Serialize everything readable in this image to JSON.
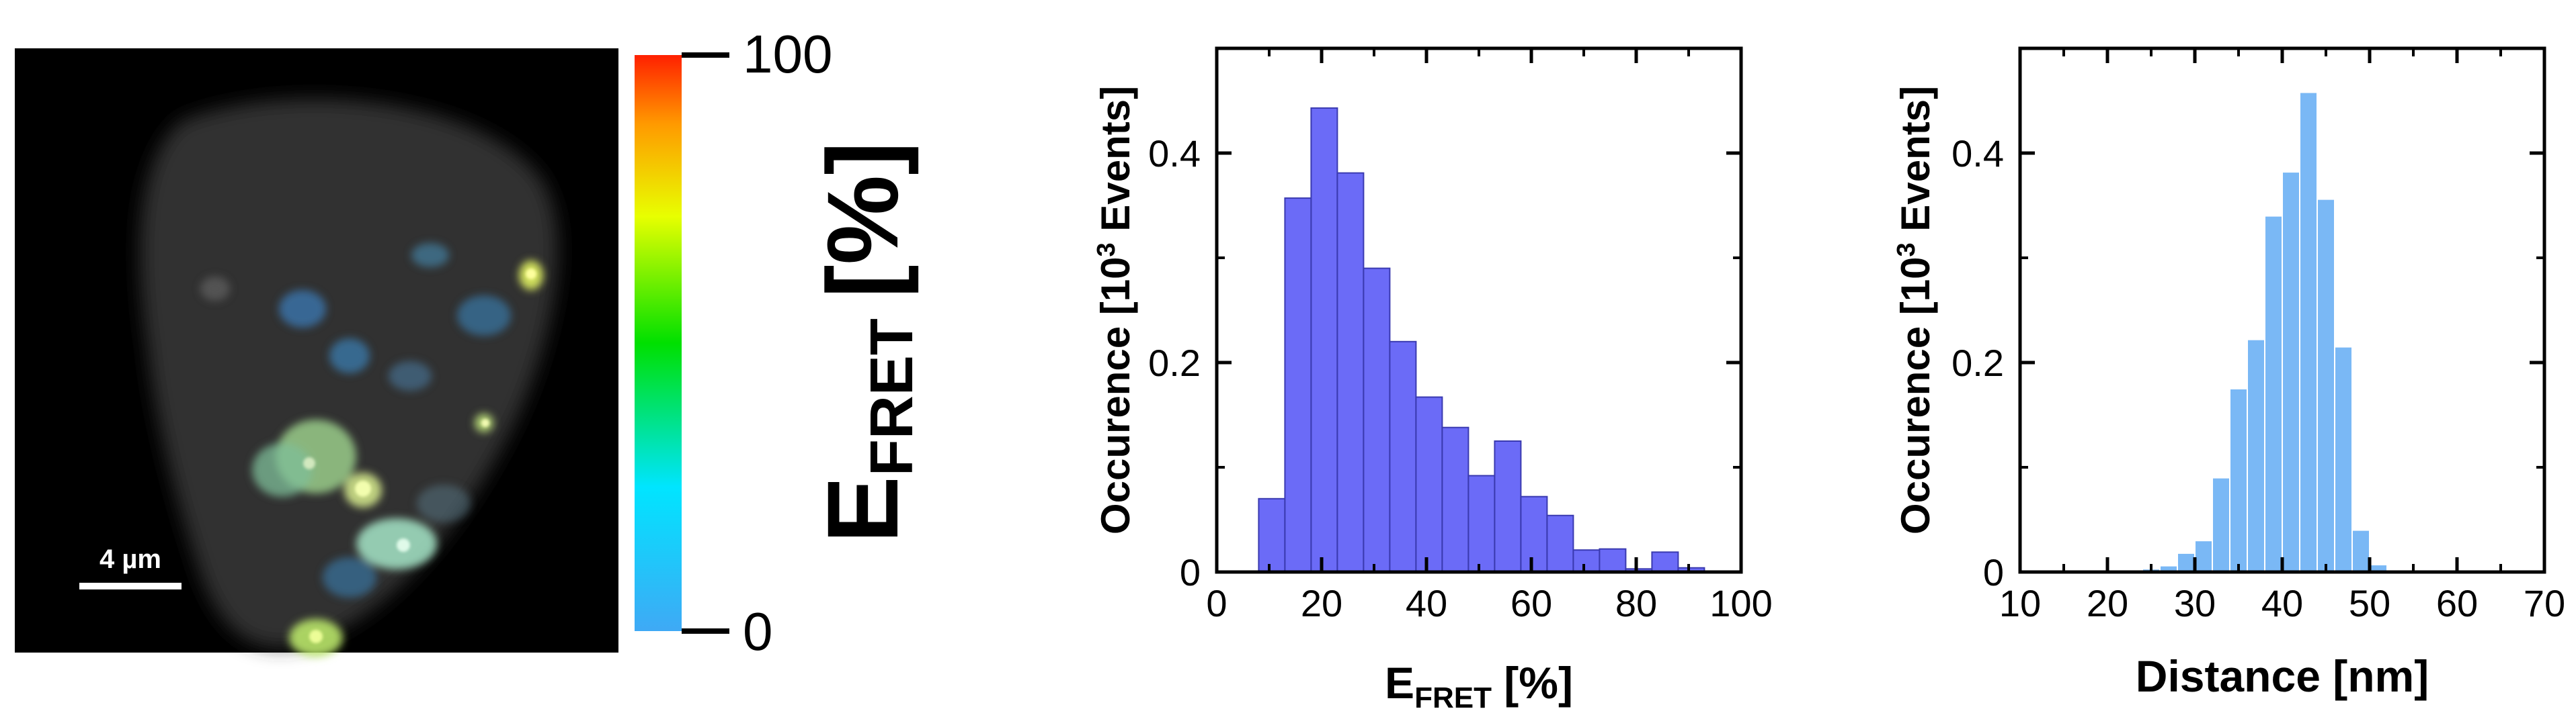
{
  "image_panel": {
    "scale_bar_label": "4 µm"
  },
  "colorbar": {
    "max_label": "100",
    "min_label": "0",
    "label_main": "E",
    "label_sub": "FRET",
    "label_unit": "[%]",
    "colors": [
      "#3fa9f5",
      "#00e5ff",
      "#00e000",
      "#e8ff00",
      "#ff9a00",
      "#ff2000"
    ]
  },
  "chart_data": [
    {
      "type": "bar",
      "x_bin_left": [
        8,
        13,
        18,
        23,
        28,
        33,
        38,
        43,
        48,
        53,
        58,
        63,
        68,
        73,
        78,
        83,
        88
      ],
      "bin_width": 5,
      "values": [
        0.07,
        0.357,
        0.443,
        0.381,
        0.29,
        0.22,
        0.167,
        0.138,
        0.092,
        0.125,
        0.072,
        0.054,
        0.021,
        0.022,
        0.003,
        0.019,
        0.004
      ],
      "color": "#6b6bf7",
      "edge_color": "#3a3ab0",
      "xlabel_main": "E",
      "xlabel_sub": "FRET",
      "xlabel_unit": " [%]",
      "ylabel_main": "Occurence [10",
      "ylabel_sup": "3",
      "ylabel_tail": " Events]",
      "xlim": [
        0,
        100
      ],
      "ylim": [
        0,
        0.5
      ],
      "xticks": [
        0,
        20,
        40,
        60,
        80,
        100
      ],
      "xtick_labels": [
        "0",
        "20",
        "40",
        "60",
        "80",
        "100"
      ],
      "yticks": [
        0,
        0.2,
        0.4
      ],
      "ytick_labels": [
        "0",
        "0.2",
        "0.4"
      ],
      "grid": false
    },
    {
      "type": "bar",
      "x_bin_left": [
        10,
        12,
        14,
        16,
        18,
        20,
        22,
        24,
        26,
        28,
        30,
        32,
        34,
        36,
        38,
        40,
        42,
        44,
        46,
        48,
        50,
        52,
        54
      ],
      "bin_width": 2,
      "values": [
        0.002,
        0.002,
        0.002,
        0.002,
        0.002,
        0.002,
        0.002,
        0.003,
        0.006,
        0.018,
        0.03,
        0.09,
        0.175,
        0.222,
        0.34,
        0.382,
        0.458,
        0.356,
        0.215,
        0.04,
        0.007,
        0.002,
        0.002
      ],
      "color": "#7ab8f5",
      "edge_color": "#ffffff",
      "xlabel_main": "Distance [nm]",
      "ylabel_main": "Occurence [10",
      "ylabel_sup": "3",
      "ylabel_tail": " Events]",
      "xlim": [
        10,
        70
      ],
      "ylim": [
        0,
        0.5
      ],
      "xticks": [
        10,
        20,
        30,
        40,
        50,
        60,
        70
      ],
      "xtick_labels": [
        "10",
        "20",
        "30",
        "40",
        "50",
        "60",
        "70"
      ],
      "yticks": [
        0,
        0.2,
        0.4
      ],
      "ytick_labels": [
        "0",
        "0.2",
        "0.4"
      ],
      "grid": false
    }
  ]
}
